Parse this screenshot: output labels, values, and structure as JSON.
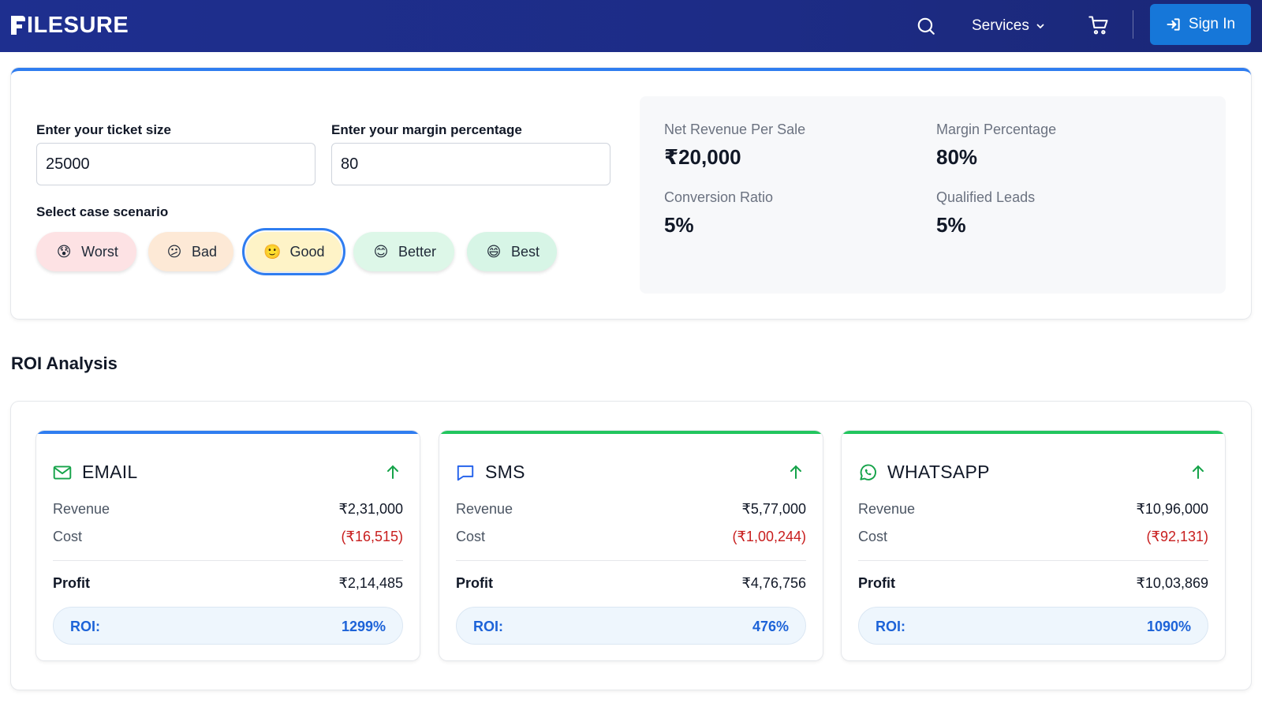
{
  "header": {
    "brand": "ILESURE",
    "services_label": "Services",
    "signin_label": "Sign In"
  },
  "calculator": {
    "ticket_label": "Enter your ticket size",
    "ticket_value": "25000",
    "margin_label": "Enter your margin percentage",
    "margin_value": "80",
    "scenario_label": "Select case scenario",
    "scenarios": [
      {
        "label": "Worst",
        "emoji": "😰",
        "bg": "#fde2e4",
        "active": false
      },
      {
        "label": "Bad",
        "emoji": "😕",
        "bg": "#fde9d6",
        "active": false
      },
      {
        "label": "Good",
        "emoji": "🙂",
        "bg": "#fef3c7",
        "active": true
      },
      {
        "label": "Better",
        "emoji": "😊",
        "bg": "#ddf7e8",
        "active": false
      },
      {
        "label": "Best",
        "emoji": "😄",
        "bg": "#d7f5e6",
        "active": false
      }
    ]
  },
  "summary": {
    "net_revenue_label": "Net Revenue Per Sale",
    "net_revenue_value": "₹20,000",
    "margin_label": "Margin Percentage",
    "margin_value": "80%",
    "conversion_label": "Conversion Ratio",
    "conversion_value": "5%",
    "qualified_label": "Qualified Leads",
    "qualified_value": "5%"
  },
  "roi": {
    "title": "ROI Analysis",
    "revenue_label": "Revenue",
    "cost_label": "Cost",
    "profit_label": "Profit",
    "roi_label": "ROI:",
    "channels": [
      {
        "name": "EMAIL",
        "icon": "mail-icon",
        "accent": "#2f7df0",
        "icon_color": "#16a34a",
        "revenue": "₹2,31,000",
        "cost": "(₹16,515)",
        "profit": "₹2,14,485",
        "roi": "1299%"
      },
      {
        "name": "SMS",
        "icon": "message-icon",
        "accent": "#22c55e",
        "icon_color": "#2563eb",
        "revenue": "₹5,77,000",
        "cost": "(₹1,00,244)",
        "profit": "₹4,76,756",
        "roi": "476%"
      },
      {
        "name": "WHATSAPP",
        "icon": "whatsapp-icon",
        "accent": "#22c55e",
        "icon_color": "#16a34a",
        "revenue": "₹10,96,000",
        "cost": "(₹92,131)",
        "profit": "₹10,03,869",
        "roi": "1090%"
      }
    ]
  }
}
